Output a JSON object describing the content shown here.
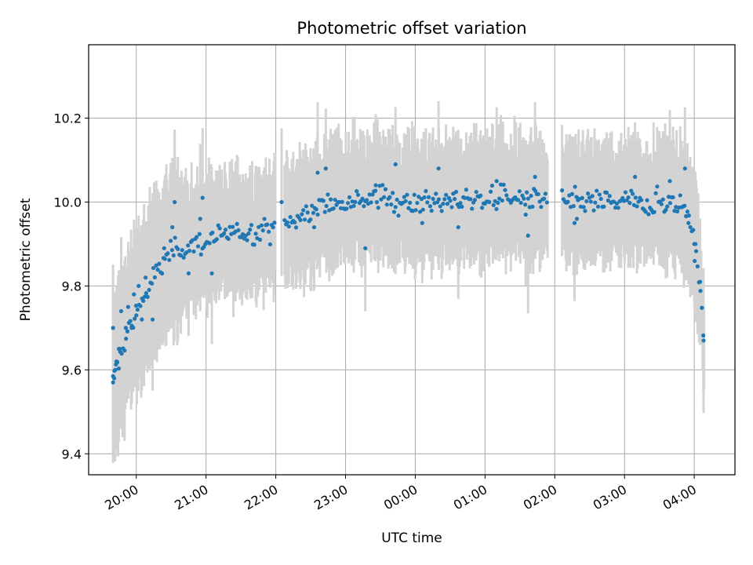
{
  "chart_data": {
    "type": "scatter",
    "title": "Photometric offset variation",
    "xlabel": "UTC time",
    "ylabel": "Photometric offset",
    "x_axis_type": "time",
    "x_start": "19:40",
    "x_end": "04:35",
    "xlim": [
      "19:19",
      "04:35"
    ],
    "ylim": [
      9.35,
      10.375
    ],
    "x_ticks": [
      "20:00",
      "21:00",
      "22:00",
      "23:00",
      "00:00",
      "01:00",
      "02:00",
      "03:00",
      "04:00"
    ],
    "y_ticks": [
      9.4,
      9.6,
      9.8,
      10.0,
      10.2
    ],
    "grid": true,
    "colors": {
      "points": "#1f77b4",
      "error_bars": "#d3d3d3",
      "grid": "#b0b0b0"
    },
    "gaps": [
      [
        "22:00",
        "22:07"
      ],
      [
        "01:54",
        "02:06"
      ]
    ],
    "trend": [
      [
        "19:40",
        9.57
      ],
      [
        "19:48",
        9.65
      ],
      [
        "19:55",
        9.71
      ],
      [
        "20:05",
        9.76
      ],
      [
        "20:15",
        9.82
      ],
      [
        "20:25",
        9.86
      ],
      [
        "20:35",
        9.89
      ],
      [
        "20:50",
        9.9
      ],
      [
        "21:05",
        9.91
      ],
      [
        "21:20",
        9.92
      ],
      [
        "21:40",
        9.93
      ],
      [
        "22:00",
        9.94
      ],
      [
        "22:20",
        9.96
      ],
      [
        "22:40",
        9.99
      ],
      [
        "23:00",
        10.01
      ],
      [
        "23:30",
        10.01
      ],
      [
        "00:00",
        10.0
      ],
      [
        "00:30",
        10.0
      ],
      [
        "01:00",
        10.01
      ],
      [
        "01:30",
        10.01
      ],
      [
        "01:54",
        10.0
      ],
      [
        "02:10",
        10.0
      ],
      [
        "02:40",
        10.0
      ],
      [
        "03:10",
        10.0
      ],
      [
        "03:40",
        10.0
      ],
      [
        "03:50",
        9.99
      ],
      [
        "03:55",
        9.97
      ],
      [
        "04:00",
        9.9
      ],
      [
        "04:05",
        9.81
      ],
      [
        "04:08",
        9.67
      ]
    ],
    "points": [
      [
        "19:40",
        9.7
      ],
      [
        "19:40",
        9.57
      ],
      [
        "19:41",
        9.58
      ],
      [
        "19:42",
        9.6
      ],
      [
        "19:43",
        9.62
      ],
      [
        "19:45",
        9.65
      ],
      [
        "19:46",
        9.65
      ],
      [
        "19:47",
        9.74
      ],
      [
        "19:51",
        9.7
      ],
      [
        "19:53",
        9.75
      ],
      [
        "19:56",
        9.7
      ],
      [
        "19:58",
        9.78
      ],
      [
        "20:00",
        9.73
      ],
      [
        "20:02",
        9.8
      ],
      [
        "20:05",
        9.77
      ],
      [
        "20:08",
        9.82
      ],
      [
        "20:14",
        9.72
      ],
      [
        "20:24",
        9.89
      ],
      [
        "20:31",
        9.94
      ],
      [
        "20:33",
        10.0
      ],
      [
        "20:45",
        9.83
      ],
      [
        "20:55",
        9.96
      ],
      [
        "20:57",
        10.01
      ],
      [
        "21:05",
        9.83
      ],
      [
        "22:05",
        10.0
      ],
      [
        "22:33",
        9.94
      ],
      [
        "22:36",
        10.07
      ],
      [
        "22:43",
        10.08
      ],
      [
        "23:17",
        9.89
      ],
      [
        "23:26",
        10.04
      ],
      [
        "23:43",
        10.09
      ],
      [
        "00:06",
        9.95
      ],
      [
        "00:20",
        10.08
      ],
      [
        "00:37",
        9.94
      ],
      [
        "01:10",
        10.05
      ],
      [
        "01:35",
        9.97
      ],
      [
        "01:37",
        9.92
      ],
      [
        "01:43",
        10.06
      ],
      [
        "02:17",
        9.95
      ],
      [
        "02:19",
        9.96
      ],
      [
        "03:09",
        10.06
      ],
      [
        "03:39",
        10.05
      ],
      [
        "03:52",
        10.08
      ],
      [
        "03:55",
        9.95
      ],
      [
        "04:00",
        9.9
      ],
      [
        "04:01",
        9.9
      ],
      [
        "04:05",
        9.81
      ],
      [
        "04:08",
        9.67
      ]
    ]
  }
}
